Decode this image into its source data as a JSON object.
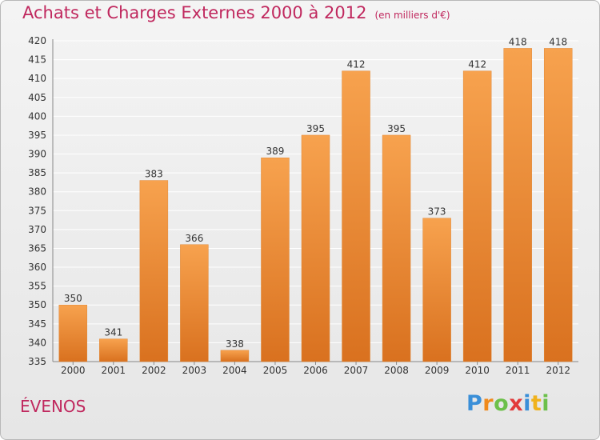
{
  "title": "Achats et Charges Externes 2000 à 2012",
  "unit_note": "(en milliers d'€)",
  "commune": "ÉVENOS",
  "logo": {
    "text": "Proxiti",
    "letters": [
      {
        "ch": "P",
        "color": "#3a8fd8"
      },
      {
        "ch": "r",
        "color": "#f08a1c"
      },
      {
        "ch": "o",
        "color": "#6cc04a"
      },
      {
        "ch": "x",
        "color": "#e23b3b"
      },
      {
        "ch": "i",
        "color": "#3a8fd8"
      },
      {
        "ch": "t",
        "color": "#f0b21c"
      },
      {
        "ch": "i",
        "color": "#6cc04a"
      }
    ]
  },
  "colors": {
    "accent": "#c0285e",
    "bar_top": "#f7a24e",
    "bar_bottom": "#d9711f",
    "grid": "#ffffff"
  },
  "chart_data": {
    "type": "bar",
    "title": "Achats et Charges Externes 2000 à 2012",
    "categories": [
      "2000",
      "2001",
      "2002",
      "2003",
      "2004",
      "2005",
      "2006",
      "2007",
      "2008",
      "2009",
      "2010",
      "2011",
      "2012"
    ],
    "values": [
      350,
      341,
      383,
      366,
      338,
      389,
      395,
      412,
      395,
      373,
      412,
      418,
      418
    ],
    "ylim": [
      335,
      420
    ],
    "ytick_step": 5,
    "grid": true,
    "xlabel": "",
    "ylabel": ""
  }
}
